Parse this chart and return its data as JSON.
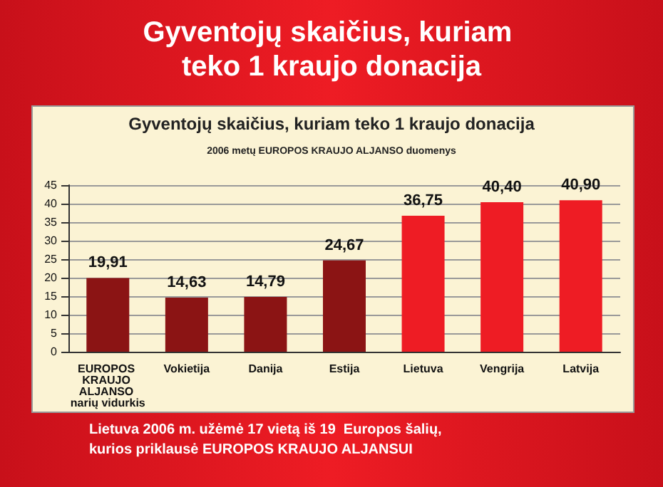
{
  "chart_data": {
    "type": "bar",
    "title": "Gyventojų skaičius, kuriam teko 1 kraujo donacija",
    "subtitle": "2006 metų EUROPOS KRAUJO ALJANSO duomenys",
    "annotations": [
      "Gyventojų skaičius, kuriam teko 1 kraujo donacija",
      "Lietuva 2006 m. užėmė 17 vietą iš 19  Europos šalių, kurios priklausė EUROPOS KRAUJO ALJANSUI"
    ],
    "categories": [
      "EUROPOS KRAUJO ALJANSO narių vidurkis",
      "Vokietija",
      "Danija",
      "Estija",
      "Lietuva",
      "Vengrija",
      "Latvija"
    ],
    "values": [
      19.91,
      14.63,
      14.79,
      24.67,
      36.75,
      40.4,
      40.9
    ],
    "value_labels": [
      "19,91",
      "14,63",
      "14,79",
      "24,67",
      "36,75",
      "40,40",
      "40,90"
    ],
    "colors": [
      "#8b1414",
      "#8b1414",
      "#8b1414",
      "#8b1414",
      "#ee1c24",
      "#ee1c24",
      "#ee1c24"
    ],
    "ylim": [
      0,
      45
    ],
    "yticks": [
      0,
      5,
      10,
      15,
      20,
      25,
      30,
      35,
      40,
      45
    ],
    "grid": "y"
  }
}
